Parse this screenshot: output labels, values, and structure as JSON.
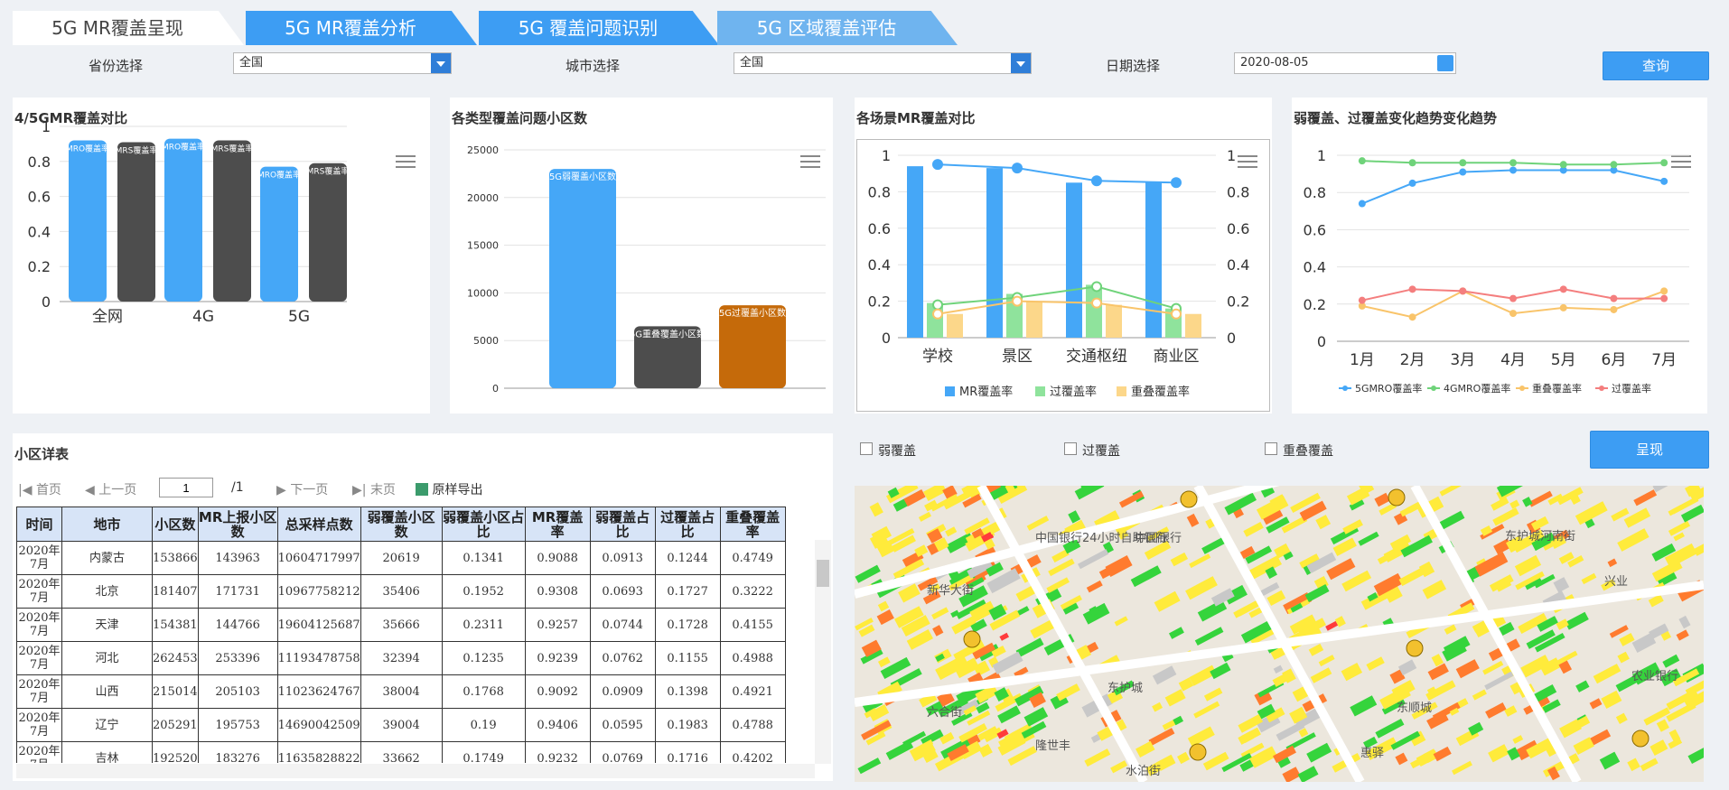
{
  "tabs": [
    {
      "label": "5G MR覆盖呈现"
    },
    {
      "label": "5G MR覆盖分析"
    },
    {
      "label": "5G 覆盖问题识别"
    },
    {
      "label": "5G 区域覆盖评估"
    }
  ],
  "filters": {
    "province_label": "省份选择",
    "province_value": "全国",
    "city_label": "城市选择",
    "city_value": "全国",
    "date_label": "日期选择",
    "date_value": "2020-08-05",
    "query_button": "查询"
  },
  "colors": {
    "accent": "#3d9df3",
    "mr5g": "#45a7f7",
    "mr4g": "#4d4d4d",
    "orange": "#c56a0a",
    "green": "#8fe39c",
    "yellow": "#fcd78a"
  },
  "panel1": {
    "title": "4/5GMR覆盖对比",
    "chart_data": {
      "type": "bar",
      "categories": [
        "全网",
        "4G",
        "5G"
      ],
      "series": [
        {
          "name": "MRO覆盖率",
          "values": [
            0.92,
            0.93,
            0.77
          ]
        },
        {
          "name": "MRS覆盖率",
          "values": [
            0.91,
            0.92,
            0.79
          ]
        }
      ],
      "ylim": [
        0,
        1
      ],
      "yticks": [
        "0",
        "0.2",
        "0.4",
        "0.6",
        "0.8",
        "1"
      ],
      "bar_labels": [
        "MRO覆盖率",
        "MRS覆盖率"
      ]
    }
  },
  "panel2": {
    "title": "各类型覆盖问题小区数",
    "chart_data": {
      "type": "bar",
      "categories": [
        "5G弱覆盖小区数",
        "5G重叠覆盖小区数",
        "5G过覆盖小区数"
      ],
      "values": [
        23000,
        6500,
        8700
      ],
      "ylim": [
        0,
        25000
      ],
      "yticks": [
        "0",
        "5000",
        "10000",
        "15000",
        "20000",
        "25000"
      ],
      "bar_labels": [
        "5G弱覆盖小区数",
        "5G重叠覆盖小区数",
        "5G过覆盖小区数"
      ]
    }
  },
  "panel3": {
    "title": "各场景MR覆盖对比",
    "chart_data": {
      "type": "bar",
      "categories": [
        "学校",
        "景区",
        "交通枢纽",
        "商业区"
      ],
      "series": [
        {
          "name": "MR覆盖率",
          "values": [
            0.94,
            0.93,
            0.85,
            0.85
          ]
        },
        {
          "name": "过覆盖率",
          "values": [
            0.19,
            0.24,
            0.29,
            0.16
          ]
        },
        {
          "name": "重叠覆盖率",
          "values": [
            0.13,
            0.2,
            0.18,
            0.13
          ]
        }
      ],
      "line_series": [
        {
          "name": "MR覆盖率",
          "values": [
            0.95,
            0.93,
            0.86,
            0.85
          ]
        },
        {
          "name": "过覆盖率",
          "values": [
            0.18,
            0.22,
            0.28,
            0.16
          ]
        },
        {
          "name": "重叠覆盖率",
          "values": [
            0.13,
            0.2,
            0.19,
            0.13
          ]
        }
      ],
      "ylim": [
        0,
        1
      ],
      "yticks": [
        "0",
        "0.2",
        "0.4",
        "0.6",
        "0.8",
        "1"
      ]
    }
  },
  "panel4": {
    "title": "弱覆盖、过覆盖变化趋势变化趋势",
    "chart_data": {
      "type": "line",
      "categories": [
        "1月",
        "2月",
        "3月",
        "4月",
        "5月",
        "6月",
        "7月"
      ],
      "series": [
        {
          "name": "5GMRO覆盖率",
          "values": [
            0.74,
            0.85,
            0.91,
            0.92,
            0.92,
            0.92,
            0.86
          ]
        },
        {
          "name": "4GMRO覆盖率",
          "values": [
            0.97,
            0.96,
            0.96,
            0.96,
            0.95,
            0.95,
            0.96
          ]
        },
        {
          "name": "重叠覆盖率",
          "values": [
            0.19,
            0.13,
            0.27,
            0.15,
            0.18,
            0.17,
            0.27
          ]
        },
        {
          "name": "过覆盖率",
          "values": [
            0.22,
            0.28,
            0.27,
            0.23,
            0.28,
            0.23,
            0.23
          ]
        }
      ],
      "ylim": [
        0,
        1
      ],
      "yticks": [
        "0",
        "0.2",
        "0.4",
        "0.6",
        "0.8",
        "1"
      ]
    }
  },
  "table_section": {
    "title": "小区详表",
    "pager": {
      "first": "首页",
      "prev": "上一页",
      "page": "1",
      "total": "/1",
      "next": "下一页",
      "last": "末页",
      "export": "原样导出"
    },
    "columns": [
      "时间",
      "地市",
      "小区数",
      "MR上报小区数",
      "总采样点数",
      "弱覆盖小区数",
      "弱覆盖小区占比",
      "MR覆盖率",
      "弱覆盖占比",
      "过覆盖占比",
      "重叠覆盖率"
    ],
    "rows": [
      [
        "2020年7月",
        "内蒙古",
        "153866",
        "143963",
        "10604717997",
        "20619",
        "0.1341",
        "0.9088",
        "0.0913",
        "0.1244",
        "0.4749"
      ],
      [
        "2020年7月",
        "北京",
        "181407",
        "171731",
        "10967758212",
        "35406",
        "0.1952",
        "0.9308",
        "0.0693",
        "0.1727",
        "0.3222"
      ],
      [
        "2020年7月",
        "天津",
        "154381",
        "144766",
        "19604125687",
        "35666",
        "0.2311",
        "0.9257",
        "0.0744",
        "0.1728",
        "0.4155"
      ],
      [
        "2020年7月",
        "河北",
        "262453",
        "253396",
        "11193478758",
        "32394",
        "0.1235",
        "0.9239",
        "0.0762",
        "0.1155",
        "0.4988"
      ],
      [
        "2020年7月",
        "山西",
        "215014",
        "205103",
        "11023624767",
        "38004",
        "0.1768",
        "0.9092",
        "0.0909",
        "0.1398",
        "0.4921"
      ],
      [
        "2020年7月",
        "辽宁",
        "205291",
        "195753",
        "14690042509",
        "39004",
        "0.19",
        "0.9406",
        "0.0595",
        "0.1983",
        "0.4788"
      ],
      [
        "2020年7月",
        "吉林",
        "192520",
        "183276",
        "11635828822",
        "33662",
        "0.1749",
        "0.9232",
        "0.0769",
        "0.1716",
        "0.4202"
      ]
    ]
  },
  "map_section": {
    "checkboxes": [
      "弱覆盖",
      "过覆盖",
      "重叠覆盖"
    ],
    "show_button": "呈现",
    "map_labels": [
      "中国银行24小时自助银行",
      "中国银行",
      "新华大街",
      "东护城河南街",
      "兴业",
      "农业银行",
      "东顺城",
      "隆世丰",
      "东护城",
      "水泊街",
      "惠驿",
      "六合街"
    ]
  }
}
